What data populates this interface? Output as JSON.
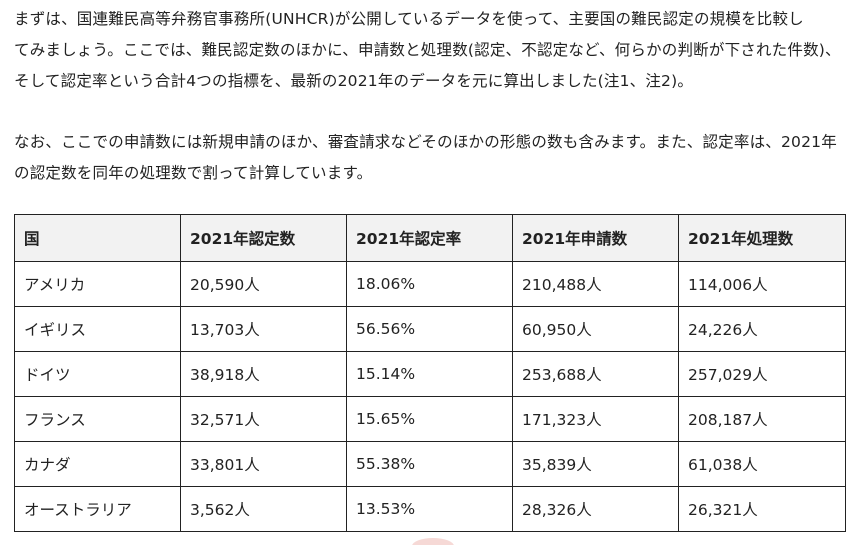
{
  "intro": {
    "p1": [
      "まずは、国連難民高等弁務官事務所(UNHCR)が公開しているデータを使って、主要国の難民認定の規模を比較し",
      "てみましょう。ここでは、難民認定数のほかに、申請数と処理数(認定、不認定など、何らかの判断が下された件数)、",
      "そして認定率という合計4つの指標を、最新の2021年のデータを元に算出しました(注1、注2)。"
    ],
    "p2": [
      "なお、ここでの申請数には新規申請のほか、審査請求などそのほかの形態の数も含みます。また、認定率は、2021年",
      "の認定数を同年の処理数で割って計算しています。"
    ]
  },
  "table": {
    "headers": [
      "国",
      "2021年認定数",
      "2021年認定率",
      "2021年申請数",
      "2021年処理数"
    ],
    "rows": [
      [
        "アメリカ",
        "20,590人",
        "18.06%",
        "210,488人",
        "114,006人"
      ],
      [
        "イギリス",
        "13,703人",
        "56.56%",
        "60,950人",
        "24,226人"
      ],
      [
        "ドイツ",
        "38,918人",
        "15.14%",
        "253,688人",
        "257,029人"
      ],
      [
        "フランス",
        "32,571人",
        "15.65%",
        "171,323人",
        "208,187人"
      ],
      [
        "カナダ",
        "33,801人",
        "55.38%",
        "35,839人",
        "61,038人"
      ],
      [
        "オーストラリア",
        "3,562人",
        "13.53%",
        "28,326人",
        "26,321人"
      ]
    ]
  }
}
